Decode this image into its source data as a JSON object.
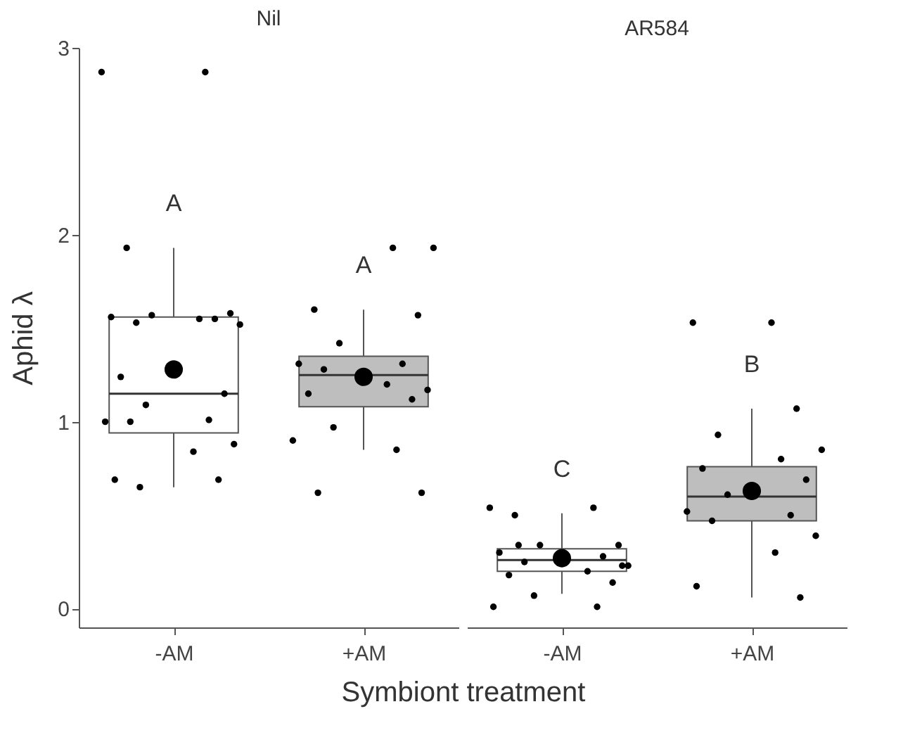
{
  "chart_data": [
    {
      "type": "box",
      "title": "Nil",
      "ylabel": "Aphid λ",
      "xlabel": "Symbiont treatment",
      "categories": [
        "-AM",
        "+AM"
      ],
      "ylim": [
        -0.1,
        3
      ],
      "yticks": [
        0,
        1,
        2,
        3
      ],
      "colors": [
        "#ffffff",
        "#bebebe"
      ],
      "boxes": [
        {
          "low": 0.65,
          "q1": 0.94,
          "median": 1.15,
          "q3": 1.56,
          "high": 1.93,
          "mean": 1.28
        },
        {
          "low": 0.85,
          "q1": 1.08,
          "median": 1.25,
          "q3": 1.35,
          "high": 1.6,
          "mean": 1.24
        }
      ],
      "series": [
        {
          "type": "scatter",
          "color": "#000000",
          "marker": "circle",
          "x": [
            "-AM",
            "-AM",
            "-AM",
            "-AM",
            "-AM",
            "-AM",
            "-AM",
            "-AM",
            "-AM",
            "-AM",
            "-AM",
            "-AM",
            "-AM",
            "-AM",
            "-AM",
            "-AM",
            "-AM",
            "-AM",
            "-AM",
            "-AM",
            "-AM",
            "+AM",
            "+AM",
            "+AM",
            "+AM",
            "+AM",
            "+AM",
            "+AM",
            "+AM",
            "+AM",
            "+AM",
            "+AM",
            "+AM",
            "+AM",
            "+AM",
            "+AM",
            "+AM",
            "+AM"
          ],
          "values": [
            2.87,
            2.87,
            1.93,
            1.58,
            1.57,
            1.56,
            1.55,
            1.53,
            1.52,
            1.55,
            1.24,
            1.15,
            1.09,
            1.0,
            1.01,
            1.0,
            0.88,
            0.84,
            0.69,
            0.69,
            0.65,
            1.93,
            1.93,
            1.6,
            1.57,
            1.42,
            1.31,
            1.31,
            1.28,
            1.17,
            1.2,
            1.15,
            1.12,
            0.97,
            0.9,
            0.85,
            0.62,
            0.62
          ]
        }
      ],
      "annotations": [
        "A",
        "A"
      ]
    },
    {
      "type": "box",
      "title": "AR584",
      "categories": [
        "-AM",
        "+AM"
      ],
      "ylim": [
        -0.1,
        3
      ],
      "yticks": [
        0,
        1,
        2,
        3
      ],
      "tick_labels": "x",
      "colors": [
        "#ffffff",
        "#bebebe"
      ],
      "boxes": [
        {
          "low": 0.08,
          "q1": 0.2,
          "median": 0.26,
          "q3": 0.32,
          "high": 0.51,
          "mean": 0.27
        },
        {
          "low": 0.06,
          "q1": 0.47,
          "median": 0.6,
          "q3": 0.76,
          "high": 1.07,
          "mean": 0.63
        }
      ],
      "series": [
        {
          "type": "scatter",
          "color": "#000000",
          "marker": "circle",
          "x": [
            "-AM",
            "-AM",
            "-AM",
            "-AM",
            "-AM",
            "-AM",
            "-AM",
            "-AM",
            "-AM",
            "-AM",
            "-AM",
            "-AM",
            "-AM",
            "-AM",
            "-AM",
            "-AM",
            "-AM",
            "+AM",
            "+AM",
            "+AM",
            "+AM",
            "+AM",
            "+AM",
            "+AM",
            "+AM",
            "+AM",
            "+AM",
            "+AM",
            "+AM",
            "+AM",
            "+AM",
            "+AM",
            "+AM"
          ],
          "values": [
            0.54,
            0.54,
            0.5,
            0.34,
            0.34,
            0.3,
            0.28,
            0.25,
            0.23,
            0.2,
            0.18,
            0.14,
            0.07,
            0.01,
            0.01,
            0.34,
            0.23,
            1.53,
            1.53,
            1.07,
            0.93,
            0.85,
            0.8,
            0.75,
            0.69,
            0.61,
            0.52,
            0.5,
            0.47,
            0.39,
            0.3,
            0.12,
            0.06
          ]
        }
      ],
      "annotations": [
        "C",
        "B"
      ]
    }
  ]
}
